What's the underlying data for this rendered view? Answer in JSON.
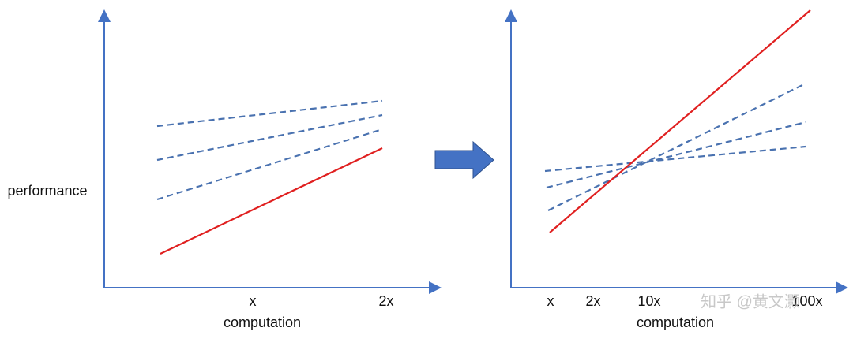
{
  "left_panel": {
    "y_label": "performance",
    "x_ticks": [
      "x",
      "2x"
    ],
    "x_label": "computation"
  },
  "right_panel": {
    "x_ticks": [
      "x",
      "2x",
      "10x",
      "100x"
    ],
    "x_label": "computation"
  },
  "watermark": "知乎 @黄文灏"
}
